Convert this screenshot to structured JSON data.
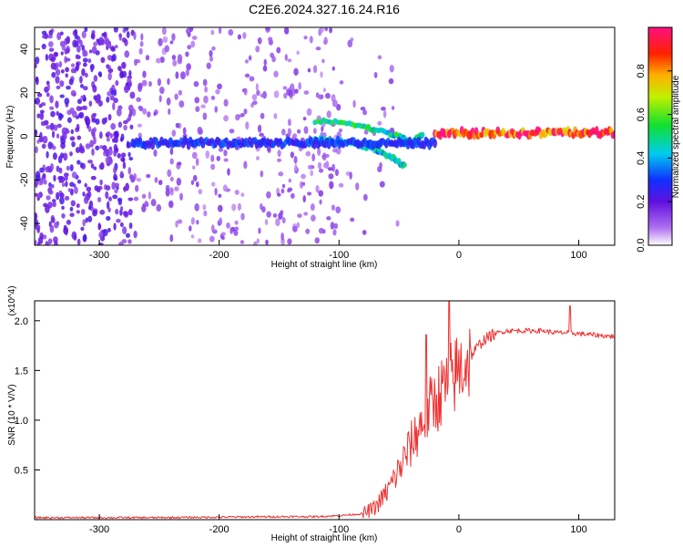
{
  "title": "C2E6.2024.327.16.24.R16",
  "colors": {
    "spectrogram_noise": "#7a2be2",
    "snr_line": "#ee3333",
    "axis": "#000000"
  },
  "chart_data": [
    {
      "type": "heatmap",
      "xlabel": "Height of straight line (km)",
      "ylabel": "Frequency (Hz)",
      "xlim": [
        -354,
        130
      ],
      "ylim": [
        -50,
        50
      ],
      "xticks": [
        -300,
        -200,
        -100,
        0,
        100
      ],
      "yticks": [
        -40,
        -20,
        0,
        20,
        40
      ],
      "colorbar": {
        "label": "Normalized spectral amplitude",
        "range": [
          0,
          1
        ],
        "ticks": [
          0.0,
          0.2,
          0.4,
          0.6,
          0.8
        ],
        "colormap": "rainbow (white to violet to blue to cyan to green to yellow to red to magenta)",
        "position": "right"
      },
      "features": [
        {
          "name": "strong signal band",
          "x_range": [
            -20,
            130
          ],
          "frequency_hz": 1.5,
          "amplitude": 0.95
        },
        {
          "name": "converging trace",
          "x": [
            -120,
            -90,
            -70,
            -50,
            -40,
            -30
          ],
          "frequency_hz": [
            7,
            6,
            3,
            0,
            -3,
            1
          ],
          "amplitude": 0.45
        },
        {
          "name": "diverging trace",
          "x": [
            -120,
            -90,
            -70,
            -55,
            -45
          ],
          "frequency_hz": [
            -1,
            -3,
            -6,
            -10,
            -14
          ],
          "amplitude": 0.4
        },
        {
          "name": "broad band",
          "x_range": [
            -272,
            -20
          ],
          "frequency_hz": -3,
          "amplitude": 0.3
        },
        {
          "name": "background noise",
          "x_range": [
            -354,
            -100
          ],
          "frequency_range_hz": [
            -50,
            50
          ],
          "amplitude": 0.1
        }
      ]
    },
    {
      "type": "line",
      "xlabel": "Height of straight line (km)",
      "ylabel": "SNR (10 * V/V)",
      "y_multiplier": "(x10^4)",
      "xlim": [
        -354,
        130
      ],
      "ylim": [
        0,
        2.2
      ],
      "xticks": [
        -300,
        -200,
        -100,
        0,
        100
      ],
      "yticks": [
        0.5,
        1.0,
        1.5,
        2.0
      ],
      "series": [
        {
          "color": "#ee3333",
          "x": [
            -354,
            -300,
            -250,
            -200,
            -150,
            -120,
            -100,
            -80,
            -70,
            -60,
            -50,
            -40,
            -30,
            -20,
            -10,
            0,
            10,
            20,
            30,
            40,
            50,
            60,
            70,
            80,
            90,
            100,
            110,
            120,
            130
          ],
          "y": [
            0.02,
            0.02,
            0.02,
            0.025,
            0.03,
            0.03,
            0.04,
            0.06,
            0.12,
            0.28,
            0.5,
            0.75,
            1.0,
            1.2,
            1.35,
            1.5,
            1.65,
            1.8,
            1.87,
            1.9,
            1.9,
            1.9,
            1.9,
            1.88,
            1.88,
            1.87,
            1.86,
            1.85,
            1.84
          ]
        }
      ],
      "annotations": [
        {
          "text": "spike",
          "x": -27,
          "y": 1.86
        },
        {
          "text": "spike",
          "x": -8,
          "y": 2.2
        },
        {
          "text": "spike",
          "x": 93,
          "y": 2.15
        }
      ]
    }
  ]
}
